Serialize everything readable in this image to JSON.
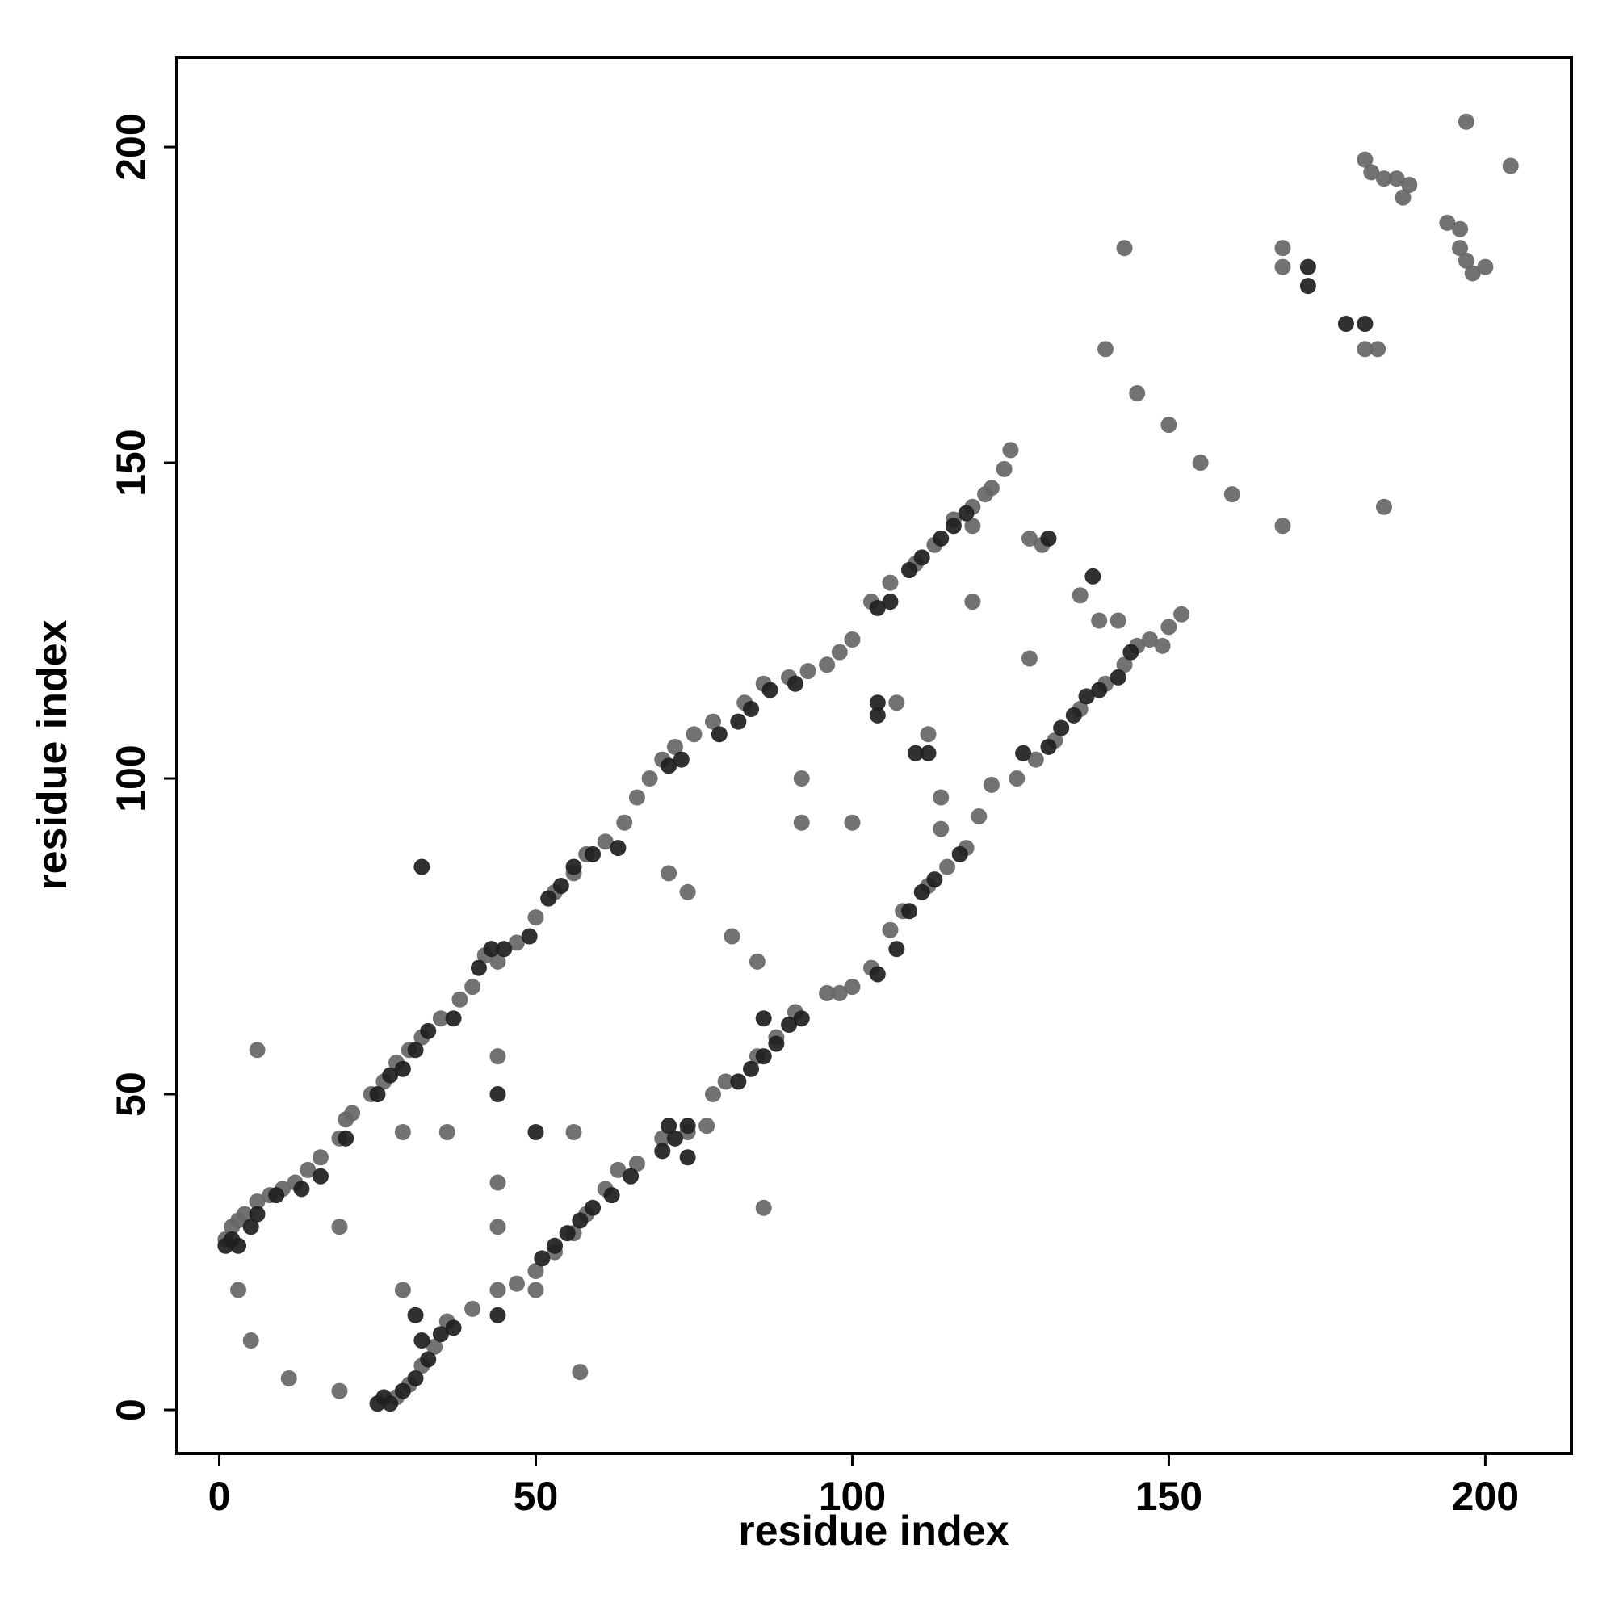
{
  "chart_data": {
    "type": "scatter",
    "xlabel": "residue index",
    "ylabel": "residue index",
    "xlim": [
      -6.7,
      213.6
    ],
    "ylim": [
      -6.9,
      214.2
    ],
    "xticks": [
      0,
      50,
      100,
      150,
      200
    ],
    "yticks": [
      0,
      50,
      100,
      150,
      200
    ],
    "grid": false,
    "series": [
      {
        "color": "#666666",
        "x": [
          1,
          2,
          3,
          4,
          6,
          8,
          10,
          12,
          14,
          16,
          19,
          20,
          21,
          24,
          26,
          28,
          30,
          32,
          35,
          38,
          40,
          42,
          44,
          47,
          50,
          53,
          56,
          58,
          61,
          64,
          66,
          68,
          70,
          72,
          75,
          78,
          83,
          86,
          90,
          93,
          96,
          98,
          100,
          103,
          106,
          110,
          113,
          116,
          119,
          121,
          122,
          124,
          125,
          28,
          30,
          32,
          34,
          36,
          40,
          44,
          47,
          50,
          53,
          56,
          58,
          61,
          63,
          66,
          70,
          74,
          78,
          80,
          85,
          88,
          91,
          96,
          100,
          103,
          106,
          108,
          112,
          115,
          118,
          120,
          122,
          126,
          129,
          132,
          136,
          140,
          143,
          145,
          147,
          150,
          152,
          6,
          3,
          5,
          11,
          19,
          19,
          29,
          36,
          29,
          44,
          44,
          44,
          50,
          56,
          57,
          71,
          74,
          77,
          81,
          85,
          86,
          92,
          92,
          98,
          100,
          107,
          112,
          114,
          114,
          119,
          128,
          119,
          128,
          136,
          140,
          143,
          145,
          150,
          155,
          160,
          168,
          168,
          168,
          181,
          183,
          184,
          181,
          182,
          184,
          186,
          188,
          187,
          194,
          196,
          196,
          197,
          198,
          200,
          197,
          204,
          130,
          139,
          142,
          149
        ],
        "y": [
          27,
          29,
          30,
          31,
          33,
          34,
          35,
          36,
          38,
          40,
          43,
          46,
          47,
          50,
          52,
          55,
          57,
          59,
          62,
          65,
          67,
          72,
          71,
          74,
          78,
          82,
          85,
          88,
          90,
          93,
          97,
          100,
          103,
          105,
          107,
          109,
          112,
          115,
          116,
          117,
          118,
          120,
          122,
          128,
          131,
          134,
          137,
          141,
          143,
          145,
          146,
          149,
          152,
          2,
          4,
          7,
          10,
          14,
          16,
          19,
          20,
          22,
          25,
          28,
          31,
          35,
          38,
          39,
          43,
          44,
          50,
          52,
          56,
          59,
          63,
          66,
          67,
          70,
          76,
          79,
          83,
          86,
          89,
          94,
          99,
          100,
          103,
          106,
          111,
          115,
          118,
          121,
          122,
          124,
          126,
          57,
          19,
          11,
          5,
          3,
          29,
          44,
          44,
          19,
          36,
          56,
          29,
          19,
          44,
          6,
          85,
          82,
          45,
          75,
          71,
          32,
          100,
          93,
          66,
          93,
          112,
          107,
          97,
          92,
          128,
          119,
          140,
          138,
          129,
          168,
          184,
          161,
          156,
          150,
          145,
          140,
          184,
          181,
          168,
          168,
          143,
          198,
          196,
          195,
          195,
          194,
          192,
          188,
          187,
          184,
          182,
          180,
          181,
          204,
          197,
          137,
          125,
          125,
          121
        ]
      },
      {
        "color": "#1e1e1e",
        "x": [
          1,
          2,
          3,
          5,
          6,
          9,
          13,
          16,
          20,
          25,
          27,
          29,
          31,
          33,
          37,
          41,
          43,
          45,
          49,
          52,
          54,
          56,
          59,
          63,
          71,
          73,
          79,
          82,
          84,
          87,
          91,
          104,
          106,
          109,
          111,
          114,
          116,
          118,
          25,
          26,
          27,
          29,
          31,
          33,
          35,
          37,
          44,
          51,
          53,
          55,
          57,
          59,
          62,
          65,
          70,
          72,
          74,
          82,
          84,
          86,
          88,
          90,
          92,
          104,
          107,
          109,
          111,
          113,
          117,
          127,
          131,
          133,
          135,
          137,
          139,
          142,
          144,
          32,
          44,
          50,
          31,
          32,
          86,
          104,
          104,
          110,
          112,
          138,
          131,
          172,
          172,
          178,
          181,
          71,
          74
        ],
        "y": [
          26,
          27,
          26,
          29,
          31,
          34,
          35,
          37,
          43,
          50,
          53,
          54,
          57,
          60,
          62,
          70,
          73,
          73,
          75,
          81,
          83,
          86,
          88,
          89,
          102,
          103,
          107,
          109,
          111,
          114,
          115,
          127,
          128,
          133,
          135,
          138,
          140,
          142,
          1,
          2,
          1,
          3,
          5,
          8,
          12,
          13,
          15,
          24,
          26,
          28,
          30,
          32,
          34,
          37,
          41,
          43,
          45,
          52,
          54,
          56,
          58,
          61,
          62,
          69,
          73,
          79,
          82,
          84,
          88,
          104,
          105,
          108,
          110,
          113,
          114,
          116,
          120,
          86,
          50,
          44,
          15,
          11,
          62,
          112,
          110,
          104,
          104,
          132,
          138,
          181,
          178,
          172,
          172,
          45,
          40
        ]
      }
    ]
  }
}
